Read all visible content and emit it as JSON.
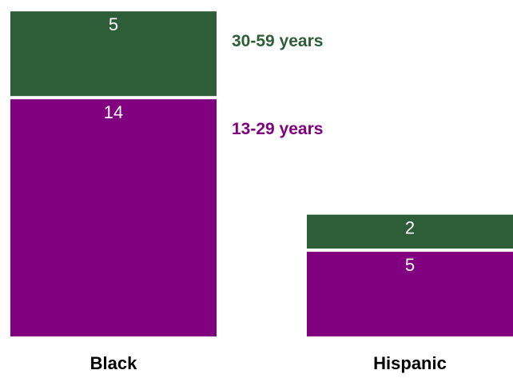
{
  "chart_data": {
    "type": "bar",
    "stacked": true,
    "categories": [
      "Black",
      "Hispanic"
    ],
    "series": [
      {
        "name": "13-29 years",
        "values": [
          14,
          5
        ],
        "color": "#800080"
      },
      {
        "name": "30-59 years",
        "values": [
          5,
          2
        ],
        "color": "#2e5e37"
      }
    ],
    "grid": false,
    "legend": "inline-right-of-first-bar"
  }
}
